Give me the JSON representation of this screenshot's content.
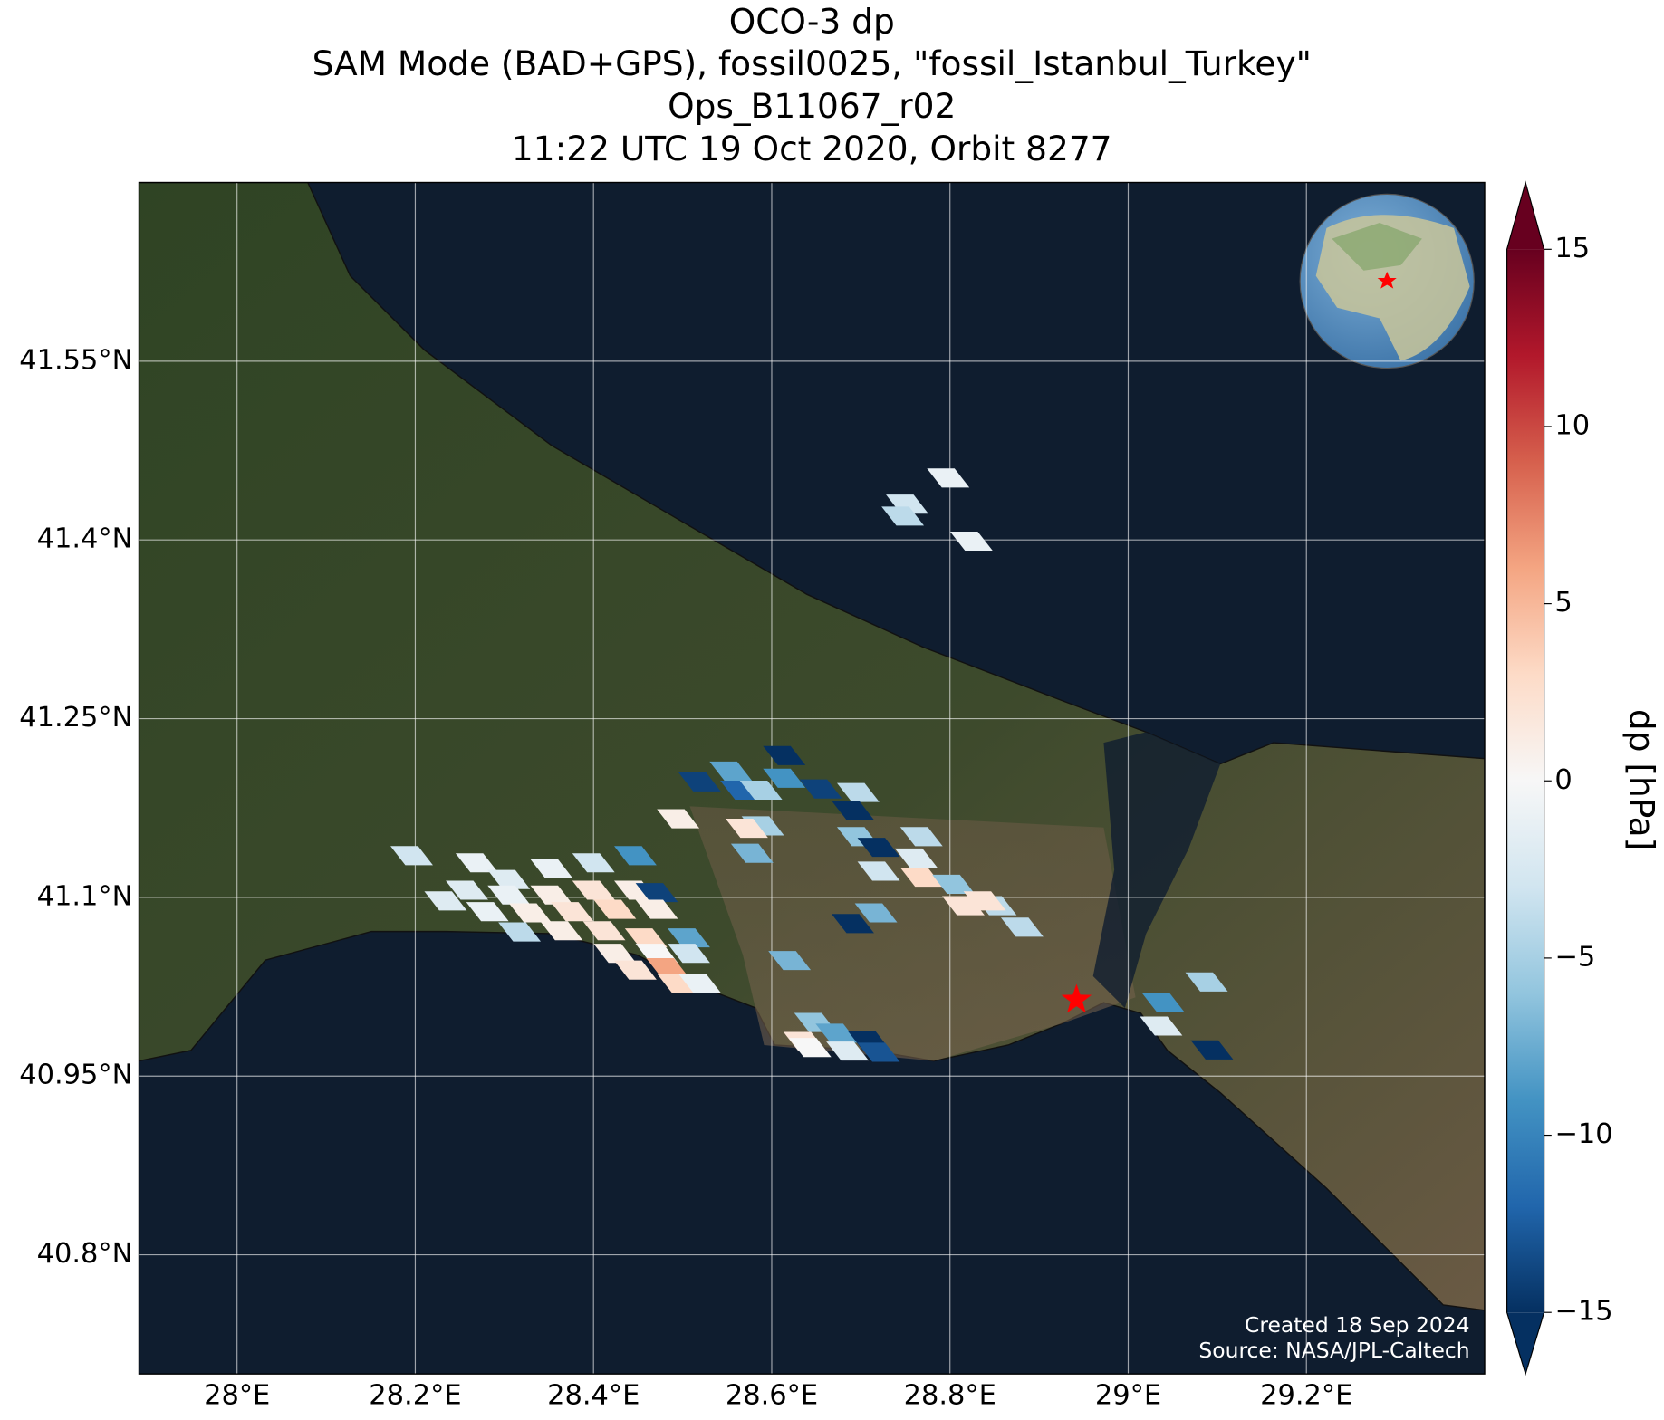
{
  "chart_data": {
    "type": "footprint-map",
    "title": [
      "OCO-3 dp",
      "SAM Mode (BAD+GPS), fossil0025, \"fossil_Istanbul_Turkey\"",
      "Ops_B11067_r02",
      "11:22 UTC 19 Oct 2020, Orbit 8277"
    ],
    "xlim": [
      27.89,
      29.4
    ],
    "ylim": [
      40.7,
      41.7
    ],
    "xticks": [
      {
        "value": 28.0,
        "label": "28°E"
      },
      {
        "value": 28.2,
        "label": "28.2°E"
      },
      {
        "value": 28.4,
        "label": "28.4°E"
      },
      {
        "value": 28.6,
        "label": "28.6°E"
      },
      {
        "value": 28.8,
        "label": "28.8°E"
      },
      {
        "value": 29.0,
        "label": "29°E"
      },
      {
        "value": 29.2,
        "label": "29.2°E"
      }
    ],
    "yticks": [
      {
        "value": 40.8,
        "label": "40.8°N"
      },
      {
        "value": 40.95,
        "label": "40.95°N"
      },
      {
        "value": 41.1,
        "label": "41.1°N"
      },
      {
        "value": 41.25,
        "label": "41.25°N"
      },
      {
        "value": 41.4,
        "label": "41.4°N"
      },
      {
        "value": 41.55,
        "label": "41.55°N"
      }
    ],
    "grid": true,
    "lon": [
      28.196,
      28.269,
      28.305,
      28.353,
      28.4,
      28.447,
      28.258,
      28.305,
      28.353,
      28.4,
      28.447,
      28.471,
      28.281,
      28.329,
      28.376,
      28.424,
      28.471,
      28.317,
      28.364,
      28.412,
      28.459,
      28.507,
      28.424,
      28.471,
      28.507,
      28.447,
      28.483,
      28.495,
      28.519,
      28.234,
      28.495,
      28.519,
      28.554,
      28.566,
      28.588,
      28.614,
      28.614,
      28.59,
      28.572,
      28.578,
      28.655,
      28.697,
      28.691,
      28.697,
      28.72,
      28.72,
      28.768,
      28.762,
      28.768,
      28.804,
      28.815,
      28.851,
      28.839,
      28.881,
      28.691,
      28.717,
      28.62,
      28.649,
      28.673,
      28.709,
      28.637,
      28.685,
      28.643,
      28.72,
      29.039,
      29.037,
      29.088,
      29.094,
      28.752,
      28.798,
      28.824,
      28.747
    ],
    "lat": [
      41.135,
      41.129,
      41.115,
      41.124,
      41.129,
      41.135,
      41.106,
      41.102,
      41.102,
      41.106,
      41.106,
      41.104,
      41.088,
      41.087,
      41.088,
      41.09,
      41.09,
      41.071,
      41.072,
      41.072,
      41.066,
      41.066,
      41.053,
      41.053,
      41.053,
      41.039,
      41.041,
      41.028,
      41.028,
      41.097,
      41.166,
      41.197,
      41.206,
      41.19,
      41.19,
      41.2,
      41.219,
      41.16,
      41.158,
      41.137,
      41.191,
      41.188,
      41.173,
      41.151,
      41.142,
      41.122,
      41.151,
      41.133,
      41.117,
      41.111,
      41.093,
      41.093,
      41.097,
      41.075,
      41.078,
      41.087,
      41.047,
      40.995,
      40.986,
      40.98,
      40.979,
      40.971,
      40.974,
      40.97,
      41.012,
      40.992,
      41.029,
      40.972,
      41.43,
      41.452,
      41.399,
      41.42
    ],
    "values": [
      -3,
      -1,
      -2,
      -1,
      -3,
      -9,
      -2,
      -1,
      1,
      2,
      1,
      -14,
      -1,
      1,
      2,
      3,
      1,
      -4,
      1,
      2,
      3,
      -8,
      1,
      0,
      -3,
      2,
      6,
      3,
      -1,
      -2,
      1,
      -14,
      -8,
      -12,
      -5,
      -9,
      -15,
      -5,
      2,
      -7,
      -14,
      -4,
      -15,
      -6,
      -15,
      -3,
      -4,
      -2,
      3,
      -6,
      2,
      -4,
      2,
      -4,
      -15,
      -7,
      -7,
      -6,
      -8,
      -15,
      2,
      -2,
      0,
      -13,
      -9,
      -2,
      -5,
      -15,
      -3,
      -1,
      -1,
      -4
    ],
    "target": {
      "lon": 28.942,
      "lat": 41.014
    },
    "colorbar": {
      "label": "dp [hPa]",
      "lim": [
        -15,
        15
      ],
      "ticks": [
        {
          "value": -15,
          "label": "−15"
        },
        {
          "value": -10,
          "label": "−10"
        },
        {
          "value": -5,
          "label": "−5"
        },
        0,
        5,
        10,
        15
      ],
      "colormap": [
        "#053061",
        "#2166ac",
        "#4393c3",
        "#92c5de",
        "#d1e5f0",
        "#f7f7f7",
        "#fddbc7",
        "#f4a582",
        "#d6604d",
        "#b2182b",
        "#67001f"
      ]
    },
    "annotations": [
      "Created 18 Sep 2024",
      "Source: NASA/JPL-Caltech"
    ]
  }
}
